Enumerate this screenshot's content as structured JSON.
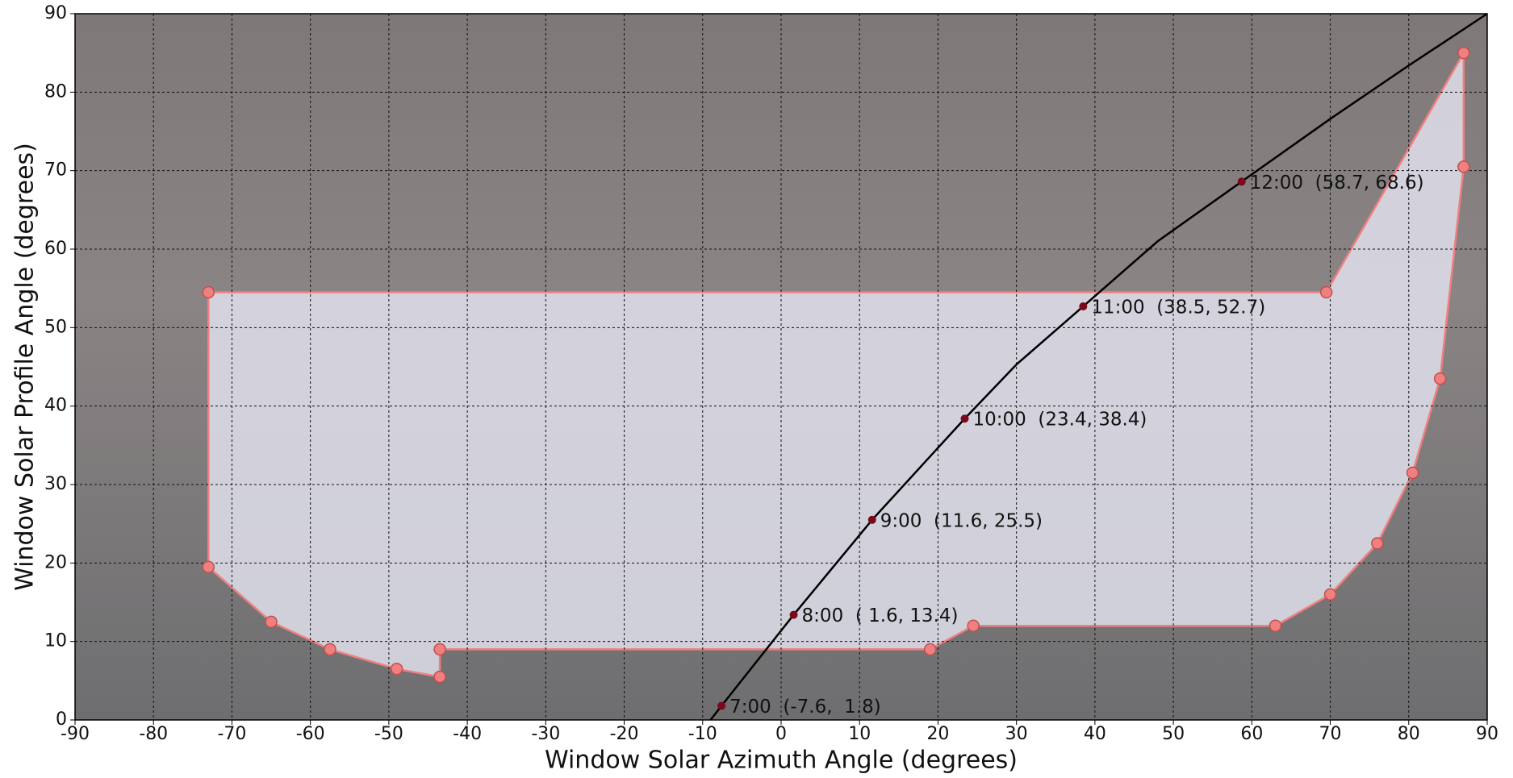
{
  "chart_data": {
    "type": "scatter",
    "xlabel": "Window Solar Azimuth Angle (degrees)",
    "ylabel": "Window Solar Profile Angle (degrees)",
    "xlim": [
      -90,
      90
    ],
    "ylim": [
      0,
      90
    ],
    "xticks": [
      -90,
      -80,
      -70,
      -60,
      -50,
      -40,
      -30,
      -20,
      -10,
      0,
      10,
      20,
      30,
      40,
      50,
      60,
      70,
      80,
      90
    ],
    "yticks": [
      0,
      10,
      20,
      30,
      40,
      50,
      60,
      70,
      80,
      90
    ],
    "grid": true,
    "series": [
      {
        "type": "polygon",
        "color": "#f08080",
        "fill": "#e4e4f0",
        "x": [
          -73,
          -73,
          -65,
          -57.5,
          -49,
          -43.5,
          -43.5,
          19,
          24.5,
          63,
          70,
          76,
          80.5,
          84,
          87,
          87,
          69.5
        ],
        "y": [
          54.5,
          19.5,
          12.5,
          9,
          6.5,
          5.5,
          9,
          9,
          12,
          12,
          16,
          22.5,
          31.5,
          43.5,
          70.5,
          85,
          54.5
        ]
      },
      {
        "type": "line",
        "color": "#000000",
        "x": [
          -9,
          -7.6,
          1.6,
          11.6,
          23.4,
          30,
          38.5,
          48,
          58.7,
          70,
          80,
          90
        ],
        "y": [
          0,
          1.8,
          13.4,
          25.5,
          38.4,
          45.3,
          52.7,
          61,
          68.6,
          76.6,
          83.4,
          90
        ]
      },
      {
        "type": "scatter",
        "color": "#7a0a1a",
        "x": [
          -7.6,
          1.6,
          11.6,
          23.4,
          38.5,
          58.7
        ],
        "y": [
          1.8,
          13.4,
          25.5,
          38.4,
          52.7,
          68.6
        ],
        "labels": [
          "7:00  (-7.6,  1.8)",
          "8:00  ( 1.6, 13.4)",
          "9:00  (11.6, 25.5)",
          "10:00  (23.4, 38.4)",
          "11:00  (38.5, 52.7)",
          "12:00  (58.7, 68.6)"
        ]
      }
    ]
  }
}
